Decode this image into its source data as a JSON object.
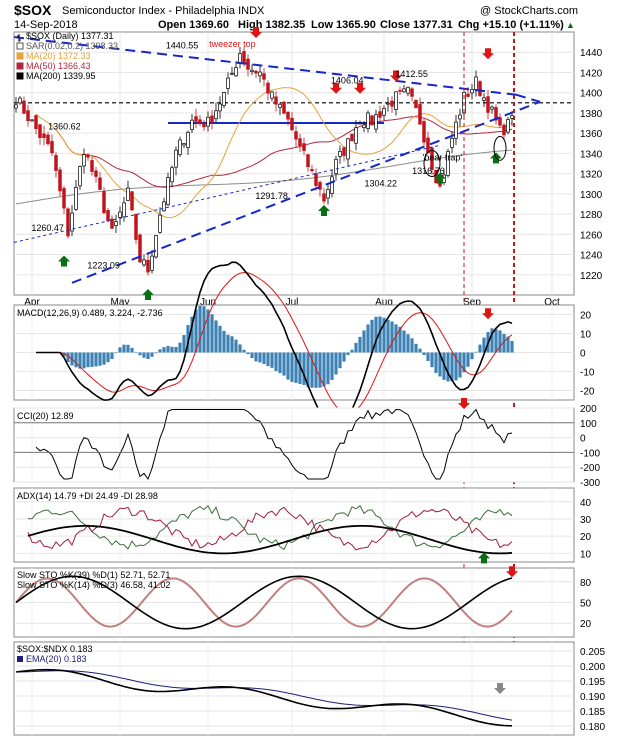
{
  "header": {
    "symbol": "$SOX",
    "name": "Semiconductor Index - Philadelphia INDX",
    "date": "14-Sep-2018",
    "open": "Open 1369.60",
    "high": "High 1382.35",
    "low": "Low 1365.90",
    "close": "Close 1377.31",
    "chg": "Chg +15.10 (+1.11%)",
    "chg_up": "▲",
    "watermark": "@ StockCharts.com"
  },
  "colors": {
    "price_bar": "#c0141c",
    "ma20": "#e8a23c",
    "ma50": "#b4283c",
    "ma200": "#8c8c8c",
    "trend": "#1428c8",
    "arrow_down": "#e01414",
    "arrow_up": "#0a6e14",
    "macd_hist": "#3c82b4",
    "cci_fill_pos": "#5a8c5a",
    "cci_fill_neg": "#8c5a5a",
    "adx_pdi": "#3c6e3c",
    "adx_mdi": "#a01e3c",
    "sto_d": "#c08080"
  },
  "chart_data": [
    {
      "type": "candlestick",
      "panel": "price",
      "legend": [
        {
          "label": "$SOX (Daily) 1377.31",
          "color": "#000000"
        },
        {
          "label": "SAR(0.02,0.2) 1398.33",
          "color": "#555555"
        },
        {
          "label": "MA(20) 1372.33",
          "color": "#e8a23c"
        },
        {
          "label": "MA(50) 1366.43",
          "color": "#b4283c"
        },
        {
          "label": "MA(200) 1339.95",
          "color": "#000000"
        }
      ],
      "ylim": [
        1200,
        1460
      ],
      "y_ticks": [
        1220,
        1240,
        1260,
        1280,
        1300,
        1320,
        1340,
        1360,
        1380,
        1400,
        1420,
        1440
      ],
      "x_ticks": [
        "Apr",
        "May",
        "Jun",
        "Jul",
        "Aug",
        "Sep",
        "Oct"
      ],
      "annotations": [
        {
          "text": "1440.55",
          "x": 0.3,
          "y": 1440.55
        },
        {
          "text": "tweezer top",
          "x": 0.39,
          "y": 1442,
          "color": "#e01414"
        },
        {
          "text": "1406.04",
          "x": 0.595,
          "y": 1406.04
        },
        {
          "text": "1412.55",
          "x": 0.71,
          "y": 1412.55
        },
        {
          "text": "1360.62",
          "x": 0.09,
          "y": 1360.62
        },
        {
          "text": "1260.47",
          "x": 0.06,
          "y": 1260.47
        },
        {
          "text": "1223.09",
          "x": 0.16,
          "y": 1223.09
        },
        {
          "text": "1291.78",
          "x": 0.46,
          "y": 1291.78
        },
        {
          "text": "1304.22",
          "x": 0.655,
          "y": 1304.22
        },
        {
          "text": "1316.76",
          "x": 0.74,
          "y": 1316.76
        },
        {
          "text": "'bear trap'",
          "x": 0.765,
          "y": 1330
        }
      ]
    },
    {
      "type": "line",
      "panel": "macd",
      "legend": "MACD(12,26,9) 0.489, 3.224, -2.736",
      "ylim": [
        -25,
        25
      ],
      "y_ticks": [
        -20,
        -10,
        0,
        10,
        20
      ]
    },
    {
      "type": "line",
      "panel": "cci",
      "legend": "CCI(20) 12.89",
      "ylim": [
        -300,
        200
      ],
      "y_ticks": [
        -300,
        -200,
        -100,
        0,
        100,
        200
      ]
    },
    {
      "type": "line",
      "panel": "adx",
      "legend": "ADX(14) 14.79 +DI 24.49 -DI 28.98",
      "ylim": [
        5,
        48
      ],
      "y_ticks": [
        10,
        20,
        30,
        40
      ]
    },
    {
      "type": "line",
      "panel": "sto",
      "legend1": "Slow STO %K(39) %D(1) 52.71, 52.71",
      "legend2": "Slow STO %K(14) %D(3) 46.58, 41.02",
      "ylim": [
        0,
        100
      ],
      "y_ticks": [
        20,
        50,
        80
      ]
    },
    {
      "type": "line",
      "panel": "ratio",
      "legend1": "$SOX:$NDX 0.183",
      "legend2": "EMA(20) 0.183",
      "ylim": [
        0.177,
        0.208
      ],
      "y_ticks": [
        0.18,
        0.185,
        0.19,
        0.195,
        0.2,
        0.205
      ]
    }
  ]
}
